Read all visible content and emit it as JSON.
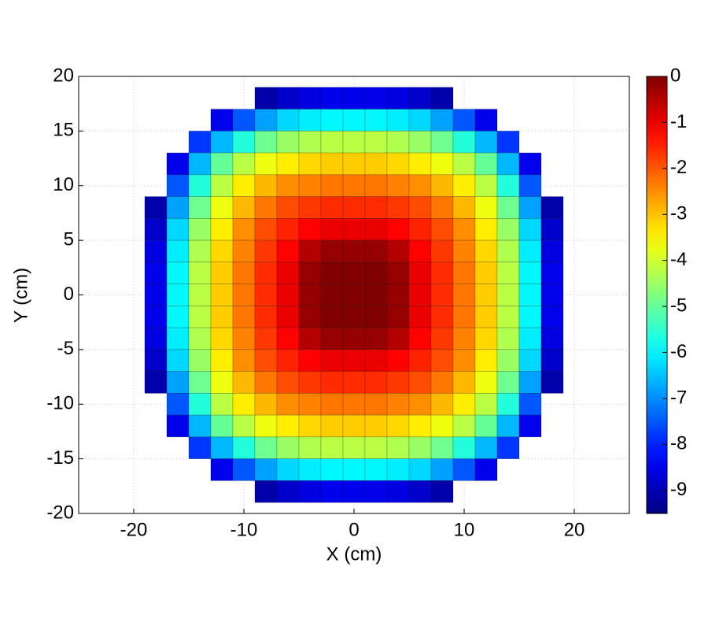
{
  "chart_data": {
    "type": "heatmap",
    "xlabel": "X (cm)",
    "ylabel": "Y (cm)",
    "x": [
      -18,
      -16,
      -14,
      -12,
      -10,
      -8,
      -6,
      -4,
      -2,
      0,
      2,
      4,
      6,
      8,
      10,
      12,
      14,
      16,
      18
    ],
    "y": [
      18,
      16,
      14,
      12,
      10,
      8,
      6,
      4,
      2,
      0,
      -2,
      -4,
      -6,
      -8,
      -10,
      -12,
      -14,
      -16,
      -18
    ],
    "values": [
      [
        null,
        null,
        null,
        null,
        null,
        -9.1,
        -8.8,
        -8.6,
        -8.5,
        -8.5,
        -8.5,
        -8.6,
        -8.8,
        -9.1,
        null,
        null,
        null,
        null,
        null
      ],
      [
        null,
        null,
        null,
        -8.5,
        -7.5,
        -6.8,
        -6.3,
        -6.1,
        -6,
        -6,
        -6,
        -6.1,
        -6.3,
        -6.8,
        -7.5,
        -8.5,
        null,
        null,
        null
      ],
      [
        null,
        null,
        -7.8,
        -6.6,
        -5.6,
        -4.9,
        -4.5,
        -4.3,
        -4.2,
        -4.2,
        -4.2,
        -4.3,
        -4.5,
        -4.9,
        -5.6,
        -6.6,
        -7.8,
        null,
        null
      ],
      [
        null,
        -8.5,
        -6.6,
        -5,
        -4.2,
        -3.7,
        -3.4,
        -3.2,
        -3.1,
        -3.1,
        -3.1,
        -3.2,
        -3.4,
        -3.7,
        -4.2,
        -5,
        -6.6,
        -8.5,
        null
      ],
      [
        null,
        -7.5,
        -5.6,
        -4.2,
        -3.4,
        -2.9,
        -2.5,
        -2.4,
        -2.3,
        -2.3,
        -2.3,
        -2.4,
        -2.5,
        -2.9,
        -3.4,
        -4.2,
        -5.6,
        -7.5,
        null
      ],
      [
        -9.1,
        -6.8,
        -4.9,
        -3.7,
        -2.9,
        -2.3,
        -1.9,
        -1.7,
        -1.6,
        -1.6,
        -1.6,
        -1.7,
        -1.9,
        -2.3,
        -2.9,
        -3.7,
        -4.9,
        -6.8,
        -9.1
      ],
      [
        -8.8,
        -6.3,
        -4.5,
        -3.4,
        -2.5,
        -1.9,
        -1.5,
        -1.2,
        -1,
        -1,
        -1,
        -1.2,
        -1.5,
        -1.9,
        -2.5,
        -3.4,
        -4.5,
        -6.3,
        -8.8
      ],
      [
        -8.6,
        -6.1,
        -4.3,
        -3.2,
        -2.4,
        -1.7,
        -1.2,
        -0.5,
        -0.2,
        -0.2,
        -0.2,
        -0.5,
        -1.2,
        -1.7,
        -2.4,
        -3.2,
        -4.3,
        -6.1,
        -8.6
      ],
      [
        -8.5,
        -6,
        -4.2,
        -3.1,
        -2.3,
        -1.6,
        -1,
        -0.2,
        0,
        0,
        0,
        -0.2,
        -1,
        -1.6,
        -2.3,
        -3.1,
        -4.2,
        -6,
        -8.5
      ],
      [
        -8.5,
        -6,
        -4.2,
        -3.1,
        -2.3,
        -1.6,
        -1,
        -0.2,
        0,
        0,
        0,
        -0.2,
        -1,
        -1.6,
        -2.3,
        -3.1,
        -4.2,
        -6,
        -8.5
      ],
      [
        -8.5,
        -6,
        -4.2,
        -3.1,
        -2.3,
        -1.6,
        -1,
        -0.2,
        0,
        0,
        0,
        -0.2,
        -1,
        -1.6,
        -2.3,
        -3.1,
        -4.2,
        -6,
        -8.5
      ],
      [
        -8.6,
        -6.1,
        -4.3,
        -3.2,
        -2.4,
        -1.7,
        -1.2,
        -0.5,
        -0.2,
        -0.2,
        -0.2,
        -0.5,
        -1.2,
        -1.7,
        -2.4,
        -3.2,
        -4.3,
        -6.1,
        -8.6
      ],
      [
        -8.8,
        -6.3,
        -4.5,
        -3.4,
        -2.5,
        -1.9,
        -1.5,
        -1.2,
        -1,
        -1,
        -1,
        -1.2,
        -1.5,
        -1.9,
        -2.5,
        -3.4,
        -4.5,
        -6.3,
        -8.8
      ],
      [
        -9.1,
        -6.8,
        -4.9,
        -3.7,
        -2.9,
        -2.3,
        -1.9,
        -1.7,
        -1.6,
        -1.6,
        -1.6,
        -1.7,
        -1.9,
        -2.3,
        -2.9,
        -3.7,
        -4.9,
        -6.8,
        -9.1
      ],
      [
        null,
        -7.5,
        -5.6,
        -4.2,
        -3.4,
        -2.9,
        -2.5,
        -2.4,
        -2.3,
        -2.3,
        -2.3,
        -2.4,
        -2.5,
        -2.9,
        -3.4,
        -4.2,
        -5.6,
        -7.5,
        null
      ],
      [
        null,
        -8.5,
        -6.6,
        -5,
        -4.2,
        -3.7,
        -3.4,
        -3.2,
        -3.1,
        -3.1,
        -3.1,
        -3.2,
        -3.4,
        -3.7,
        -4.2,
        -5,
        -6.6,
        -8.5,
        null
      ],
      [
        null,
        null,
        -7.8,
        -6.6,
        -5.6,
        -4.9,
        -4.5,
        -4.3,
        -4.2,
        -4.2,
        -4.2,
        -4.3,
        -4.5,
        -4.9,
        -5.6,
        -6.6,
        -7.8,
        null,
        null
      ],
      [
        null,
        null,
        null,
        -8.5,
        -7.5,
        -6.8,
        -6.3,
        -6.1,
        -6,
        -6,
        -6,
        -6.1,
        -6.3,
        -6.8,
        -7.5,
        -8.5,
        null,
        null,
        null
      ],
      [
        null,
        null,
        null,
        null,
        null,
        -9.1,
        -8.8,
        -8.6,
        -8.5,
        -8.5,
        -8.5,
        -8.6,
        -8.8,
        -9.1,
        null,
        null,
        null,
        null,
        null
      ]
    ],
    "cell_size": 2,
    "xlim": [
      -25,
      25
    ],
    "ylim": [
      -20,
      20
    ],
    "xticks": [
      -20,
      -10,
      0,
      10,
      20
    ],
    "yticks": [
      -20,
      -15,
      -10,
      -5,
      0,
      5,
      10,
      15,
      20
    ],
    "grid": true,
    "colormap": "jet",
    "clim": [
      -9.5,
      0
    ],
    "colorbar_ticks": [
      0,
      -1,
      -2,
      -3,
      -4,
      -5,
      -6,
      -7,
      -8,
      -9
    ]
  }
}
